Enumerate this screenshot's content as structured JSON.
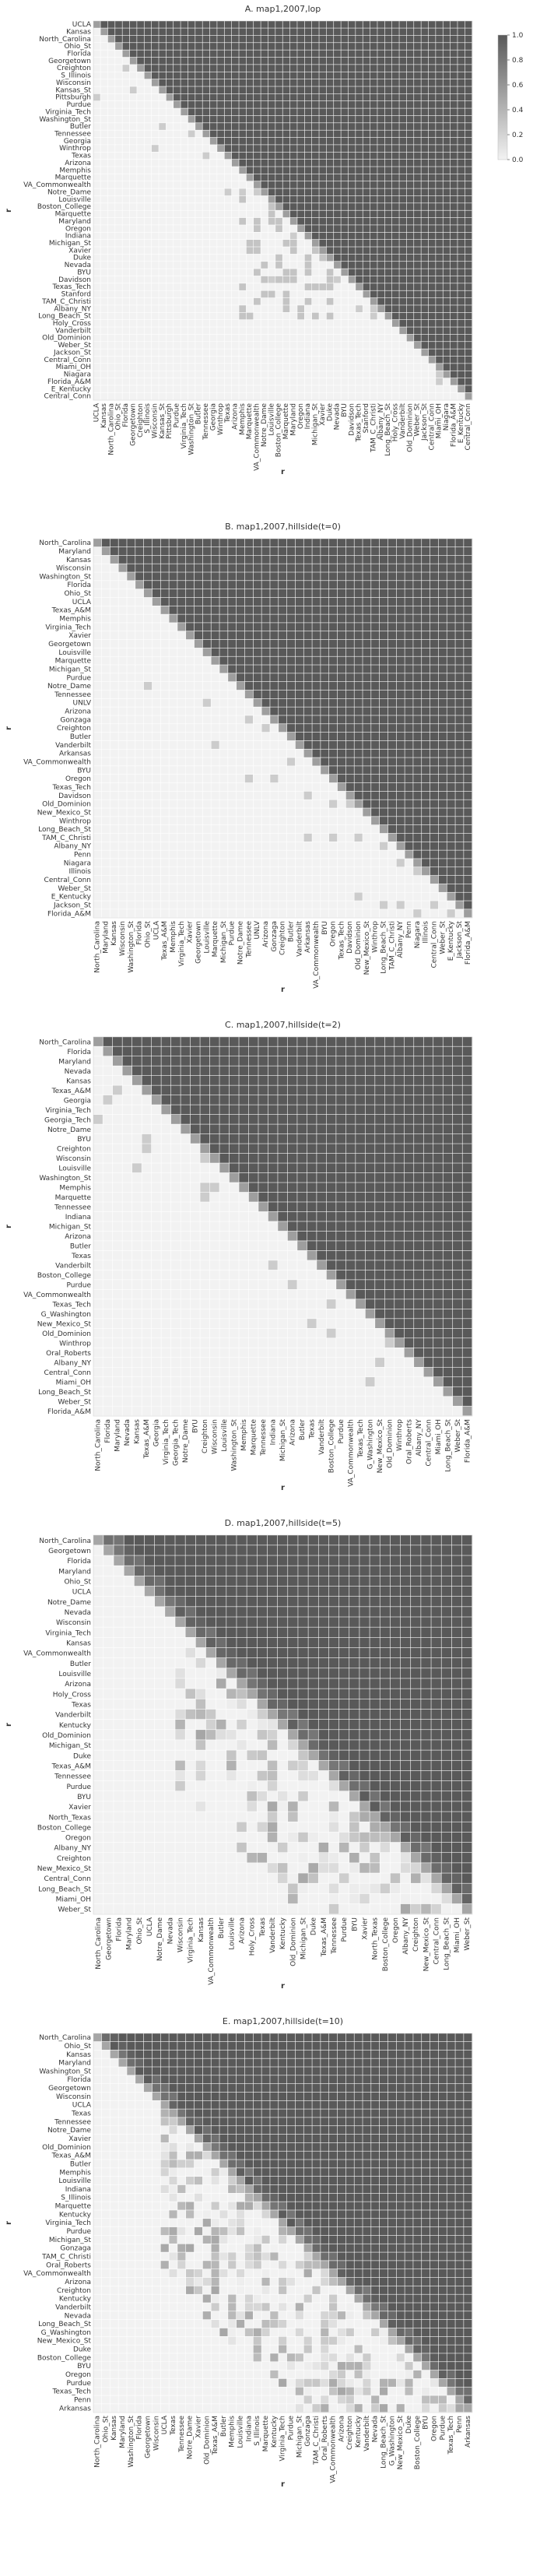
{
  "chart_data": [
    {
      "type": "heatmap",
      "title": "A. map1,2007,lop",
      "xlabel": "r",
      "ylabel": "r",
      "colorbar": {
        "ticks": [
          "0.0",
          "0.2",
          "0.4",
          "0.6",
          "0.8",
          "1.0"
        ],
        "range": [
          0,
          1
        ]
      },
      "colors": {
        "low": "#f2f2f2",
        "high": "#595959"
      },
      "labels": [
        "UCLA",
        "Kansas",
        "North_Carolina",
        "Ohio_St",
        "Florida",
        "Georgetown",
        "Creighton",
        "S_Illinois",
        "Wisconsin",
        "Kansas_St",
        "Pittsburgh",
        "Purdue",
        "Virginia_Tech",
        "Washington_St",
        "Butler",
        "Tennessee",
        "Georgia",
        "Winthrop",
        "Texas",
        "Arizona",
        "Memphis",
        "Marquette",
        "VA_Commonwealth",
        "Notre_Dame",
        "Louisville",
        "Boston_College",
        "Marquette",
        "Maryland",
        "Oregon",
        "Indiana",
        "Michigan_St",
        "Xavier",
        "Duke",
        "Nevada",
        "BYU",
        "Davidson",
        "Texas_Tech",
        "Stanford",
        "TAM_C_Christi",
        "Albany_NY",
        "Long_Beach_St",
        "Holy_Cross",
        "Vanderbilt",
        "Old_Dominion",
        "Weber_St",
        "Jackson_St",
        "Central_Conn",
        "Miami_OH",
        "Niagara",
        "Florida_A&M",
        "E_Kentucky",
        "Central_Conn"
      ],
      "pattern": "upper-triangular"
    },
    {
      "type": "heatmap",
      "title": "B. map1,2007,hillside(t=0)",
      "xlabel": "r",
      "ylabel": "r",
      "colors": {
        "low": "#f2f2f2",
        "high": "#595959"
      },
      "labels": [
        "North_Carolina",
        "Maryland",
        "Kansas",
        "Wisconsin",
        "Washington_St",
        "Florida",
        "Ohio_St",
        "UCLA",
        "Texas_A&M",
        "Memphis",
        "Virginia_Tech",
        "Xavier",
        "Georgetown",
        "Louisville",
        "Marquette",
        "Michigan_St",
        "Purdue",
        "Notre_Dame",
        "Tennessee",
        "UNLV",
        "Arizona",
        "Gonzaga",
        "Creighton",
        "Butler",
        "Vanderbilt",
        "Arkansas",
        "VA_Commonwealth",
        "BYU",
        "Oregon",
        "Texas_Tech",
        "Davidson",
        "Old_Dominion",
        "New_Mexico_St",
        "Winthrop",
        "Long_Beach_St",
        "TAM_C_Christi",
        "Albany_NY",
        "Penn",
        "Niagara",
        "Illinois",
        "Central_Conn",
        "Weber_St",
        "E_Kentucky",
        "Jackson_St",
        "Florida_A&M"
      ],
      "pattern": "upper-triangular"
    },
    {
      "type": "heatmap",
      "title": "C. map1,2007,hillside(t=2)",
      "xlabel": "r",
      "ylabel": "r",
      "colors": {
        "low": "#f2f2f2",
        "high": "#595959"
      },
      "labels": [
        "North_Carolina",
        "Florida",
        "Maryland",
        "Nevada",
        "Kansas",
        "Texas_A&M",
        "Georgia",
        "Virginia_Tech",
        "Georgia_Tech",
        "Notre_Dame",
        "BYU",
        "Creighton",
        "Wisconsin",
        "Louisville",
        "Washington_St",
        "Memphis",
        "Marquette",
        "Tennessee",
        "Indiana",
        "Michigan_St",
        "Arizona",
        "Butler",
        "Texas",
        "Vanderbilt",
        "Boston_College",
        "Purdue",
        "VA_Commonwealth",
        "Texas_Tech",
        "G_Washington",
        "New_Mexico_St",
        "Old_Dominion",
        "Winthrop",
        "Oral_Roberts",
        "Albany_NY",
        "Central_Conn",
        "Miami_OH",
        "Long_Beach_St",
        "Weber_St",
        "Florida_A&M"
      ],
      "pattern": "upper-triangular"
    },
    {
      "type": "heatmap",
      "title": "D. map1,2007,hillside(t=5)",
      "xlabel": "r",
      "ylabel": "r",
      "colors": {
        "low": "#f2f2f2",
        "high": "#595959"
      },
      "labels": [
        "North_Carolina",
        "Georgetown",
        "Florida",
        "Maryland",
        "Ohio_St",
        "UCLA",
        "Notre_Dame",
        "Nevada",
        "Wisconsin",
        "Virginia_Tech",
        "Kansas",
        "VA_Commonwealth",
        "Butler",
        "Louisville",
        "Arizona",
        "Holy_Cross",
        "Texas",
        "Vanderbilt",
        "Kentucky",
        "Old_Dominion",
        "Michigan_St",
        "Duke",
        "Texas_A&M",
        "Tennessee",
        "Purdue",
        "BYU",
        "Xavier",
        "North_Texas",
        "Boston_College",
        "Oregon",
        "Albany_NY",
        "Creighton",
        "New_Mexico_St",
        "Central_Conn",
        "Long_Beach_St",
        "Miami_OH",
        "Weber_St"
      ],
      "pattern": "upper-mostly-dark-with-scattered-lower-values"
    },
    {
      "type": "heatmap",
      "title": "E. map1,2007,hillside(t=10)",
      "xlabel": "r",
      "ylabel": "r",
      "colors": {
        "low": "#f2f2f2",
        "high": "#595959"
      },
      "labels": [
        "North_Carolina",
        "Ohio_St",
        "Kansas",
        "Maryland",
        "Washington_St",
        "Florida",
        "Georgetown",
        "Wisconsin",
        "UCLA",
        "Texas",
        "Tennessee",
        "Notre_Dame",
        "Xavier",
        "Old_Dominion",
        "Texas_A&M",
        "Butler",
        "Memphis",
        "Louisville",
        "Indiana",
        "S_Illinois",
        "Marquette",
        "Kentucky",
        "Virginia_Tech",
        "Purdue",
        "Michigan_St",
        "Gonzaga",
        "TAM_C_Christi",
        "Oral_Roberts",
        "VA_Commonwealth",
        "Arizona",
        "Creighton",
        "Kentucky",
        "Vanderbilt",
        "Nevada",
        "Long_Beach_St",
        "G_Washington",
        "New_Mexico_St",
        "Duke",
        "Boston_College",
        "BYU",
        "Oregon",
        "Purdue",
        "Texas_Tech",
        "Penn",
        "Arkansas"
      ],
      "pattern": "upper-mostly-dark-with-scattered-lower-values"
    }
  ]
}
